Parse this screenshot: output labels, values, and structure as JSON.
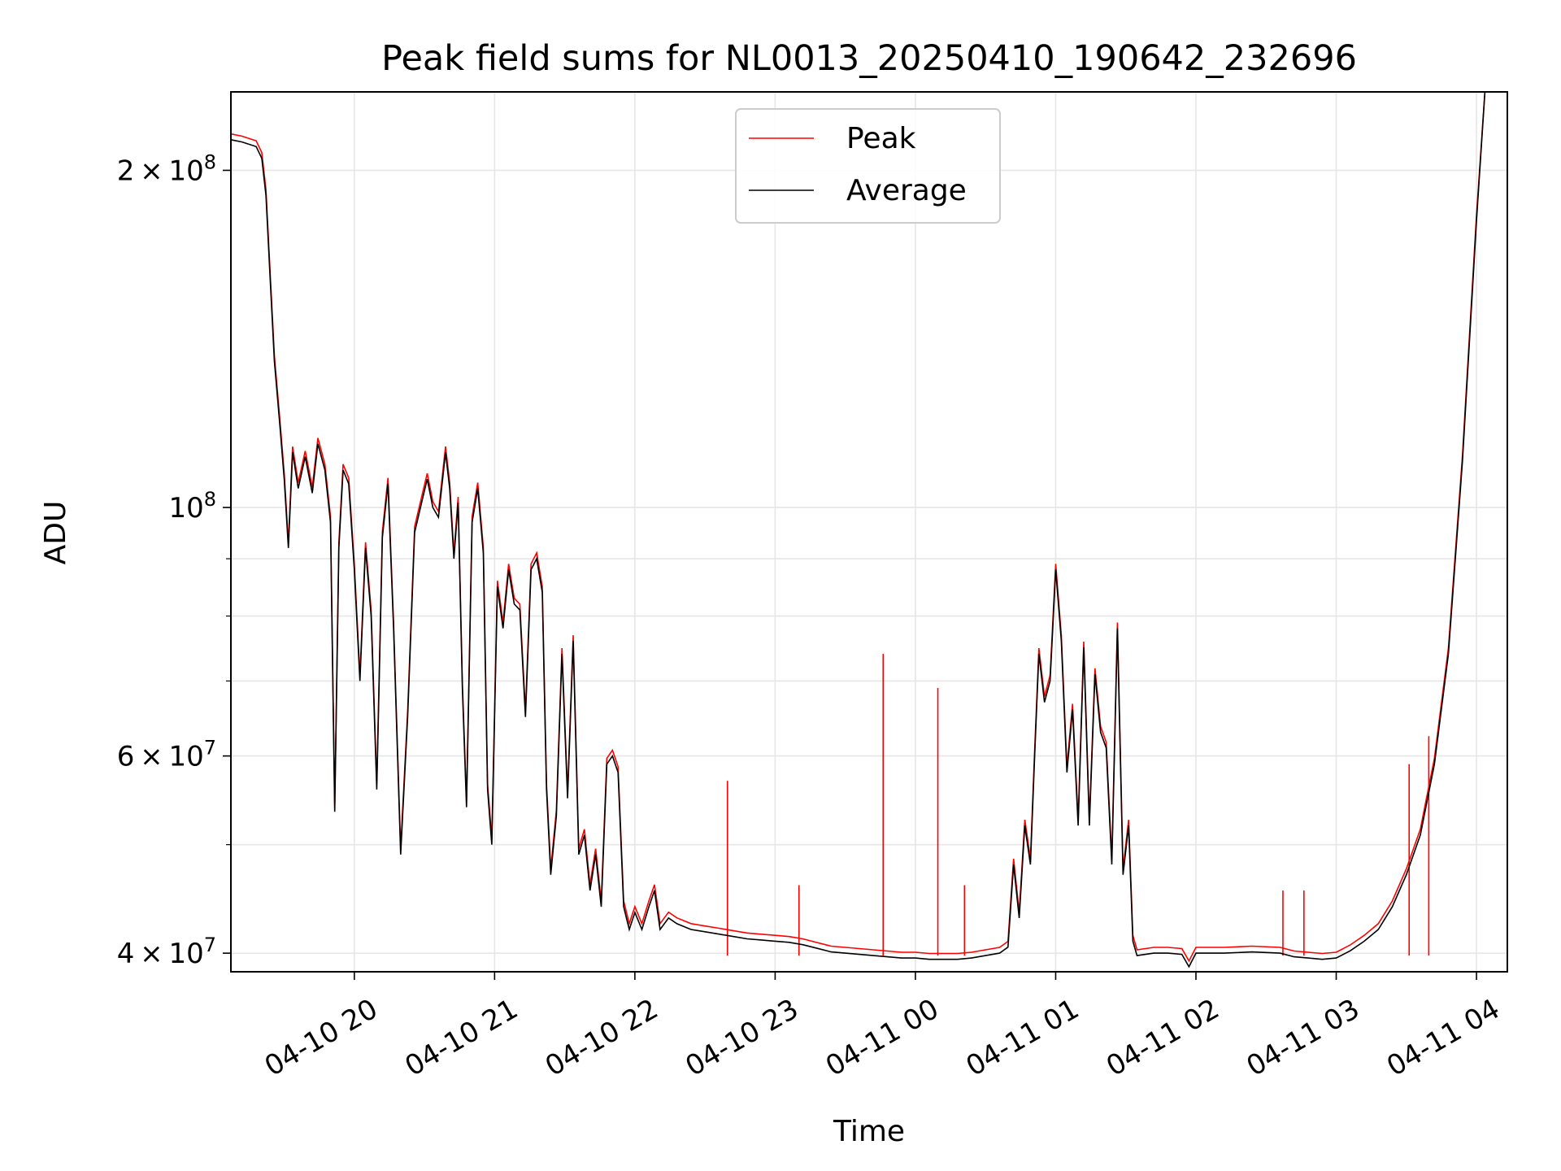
{
  "chart_data": {
    "type": "line",
    "title": "Peak field sums for NL0013_20250410_190642_232696",
    "xlabel": "Time",
    "ylabel": "ADU",
    "x_unit": "time of day (hours, 2025-04-10 19:00 onward; values ≥ 24 are on 2025-04-11)",
    "y_scale": "log",
    "xlim": [
      "2025-04-10 19:07",
      "2025-04-11 04:13"
    ],
    "ylim": [
      38500000,
      235000000
    ],
    "grid": true,
    "legend_position": "upper center",
    "x_ticks": [
      {
        "value": 20,
        "label": "04-10 20"
      },
      {
        "value": 21,
        "label": "04-10 21"
      },
      {
        "value": 22,
        "label": "04-10 22"
      },
      {
        "value": 23,
        "label": "04-10 23"
      },
      {
        "value": 24,
        "label": "04-11 00"
      },
      {
        "value": 25,
        "label": "04-11 01"
      },
      {
        "value": 26,
        "label": "04-11 02"
      },
      {
        "value": 27,
        "label": "04-11 03"
      },
      {
        "value": 28,
        "label": "04-11 04"
      }
    ],
    "y_major_ticks": [
      {
        "value": 40000000,
        "mantissa": "4",
        "exponent": "7"
      },
      {
        "value": 60000000,
        "mantissa": "6",
        "exponent": "7"
      },
      {
        "value": 100000000,
        "mantissa": "",
        "exponent": "8"
      },
      {
        "value": 200000000,
        "mantissa": "2",
        "exponent": "8"
      }
    ],
    "y_minor_ticks": [
      50000000,
      70000000,
      80000000,
      90000000
    ],
    "series": [
      {
        "name": "Peak",
        "color": "#ff0000",
        "spikes": [
          {
            "x": 22.66,
            "y": 57000000
          },
          {
            "x": 23.17,
            "y": 46000000
          },
          {
            "x": 23.77,
            "y": 74000000
          },
          {
            "x": 24.16,
            "y": 69000000
          },
          {
            "x": 24.35,
            "y": 46000000
          },
          {
            "x": 26.62,
            "y": 45500000
          },
          {
            "x": 26.77,
            "y": 45500000
          },
          {
            "x": 27.52,
            "y": 59000000
          },
          {
            "x": 27.66,
            "y": 62500000
          }
        ]
      },
      {
        "name": "Average",
        "color": "#000000",
        "points": [
          [
            19.12,
            213000000
          ],
          [
            19.2,
            212000000
          ],
          [
            19.3,
            210000000
          ],
          [
            19.34,
            205000000
          ],
          [
            19.37,
            190000000
          ],
          [
            19.4,
            160000000
          ],
          [
            19.43,
            135000000
          ],
          [
            19.47,
            118000000
          ],
          [
            19.5,
            106000000
          ],
          [
            19.53,
            92000000
          ],
          [
            19.56,
            112000000
          ],
          [
            19.6,
            104000000
          ],
          [
            19.65,
            111000000
          ],
          [
            19.7,
            103000000
          ],
          [
            19.74,
            114000000
          ],
          [
            19.79,
            108000000
          ],
          [
            19.83,
            97000000
          ],
          [
            19.86,
            53500000
          ],
          [
            19.89,
            92000000
          ],
          [
            19.92,
            108000000
          ],
          [
            19.96,
            105000000
          ],
          [
            20.0,
            88000000
          ],
          [
            20.04,
            70000000
          ],
          [
            20.08,
            92000000
          ],
          [
            20.12,
            80000000
          ],
          [
            20.16,
            56000000
          ],
          [
            20.2,
            94000000
          ],
          [
            20.24,
            105000000
          ],
          [
            20.28,
            78000000
          ],
          [
            20.33,
            49000000
          ],
          [
            20.38,
            65000000
          ],
          [
            20.43,
            95000000
          ],
          [
            20.48,
            101000000
          ],
          [
            20.52,
            106000000
          ],
          [
            20.56,
            100000000
          ],
          [
            20.6,
            98000000
          ],
          [
            20.65,
            112000000
          ],
          [
            20.68,
            104000000
          ],
          [
            20.71,
            90000000
          ],
          [
            20.74,
            101000000
          ],
          [
            20.77,
            69000000
          ],
          [
            20.8,
            54000000
          ],
          [
            20.84,
            97000000
          ],
          [
            20.88,
            104000000
          ],
          [
            20.92,
            91000000
          ],
          [
            20.95,
            56000000
          ],
          [
            20.98,
            50000000
          ],
          [
            21.02,
            85000000
          ],
          [
            21.06,
            78000000
          ],
          [
            21.1,
            88000000
          ],
          [
            21.14,
            82000000
          ],
          [
            21.18,
            81000000
          ],
          [
            21.22,
            65000000
          ],
          [
            21.26,
            88000000
          ],
          [
            21.3,
            90000000
          ],
          [
            21.34,
            84000000
          ],
          [
            21.37,
            56000000
          ],
          [
            21.4,
            47000000
          ],
          [
            21.44,
            53000000
          ],
          [
            21.48,
            74000000
          ],
          [
            21.52,
            55000000
          ],
          [
            21.56,
            76000000
          ],
          [
            21.6,
            49000000
          ],
          [
            21.64,
            51000000
          ],
          [
            21.68,
            45500000
          ],
          [
            21.72,
            49000000
          ],
          [
            21.76,
            44000000
          ],
          [
            21.8,
            59000000
          ],
          [
            21.84,
            60000000
          ],
          [
            21.88,
            58000000
          ],
          [
            21.92,
            44000000
          ],
          [
            21.96,
            42000000
          ],
          [
            22.0,
            43500000
          ],
          [
            22.05,
            42000000
          ],
          [
            22.1,
            44000000
          ],
          [
            22.14,
            45500000
          ],
          [
            22.18,
            42000000
          ],
          [
            22.24,
            43000000
          ],
          [
            22.3,
            42500000
          ],
          [
            22.4,
            42000000
          ],
          [
            22.5,
            41800000
          ],
          [
            22.6,
            41600000
          ],
          [
            22.7,
            41400000
          ],
          [
            22.8,
            41200000
          ],
          [
            22.9,
            41100000
          ],
          [
            23.0,
            41000000
          ],
          [
            23.1,
            40900000
          ],
          [
            23.2,
            40700000
          ],
          [
            23.3,
            40400000
          ],
          [
            23.4,
            40100000
          ],
          [
            23.5,
            40000000
          ],
          [
            23.6,
            39900000
          ],
          [
            23.7,
            39800000
          ],
          [
            23.8,
            39700000
          ],
          [
            23.9,
            39600000
          ],
          [
            24.0,
            39600000
          ],
          [
            24.1,
            39500000
          ],
          [
            24.2,
            39500000
          ],
          [
            24.3,
            39500000
          ],
          [
            24.4,
            39600000
          ],
          [
            24.5,
            39800000
          ],
          [
            24.6,
            40000000
          ],
          [
            24.66,
            40500000
          ],
          [
            24.7,
            48000000
          ],
          [
            24.74,
            43000000
          ],
          [
            24.78,
            52000000
          ],
          [
            24.82,
            48000000
          ],
          [
            24.85,
            60000000
          ],
          [
            24.88,
            74000000
          ],
          [
            24.92,
            67000000
          ],
          [
            24.96,
            70000000
          ],
          [
            25.0,
            88000000
          ],
          [
            25.04,
            76000000
          ],
          [
            25.08,
            58000000
          ],
          [
            25.12,
            66000000
          ],
          [
            25.16,
            52000000
          ],
          [
            25.2,
            75000000
          ],
          [
            25.24,
            52000000
          ],
          [
            25.28,
            71000000
          ],
          [
            25.32,
            63000000
          ],
          [
            25.36,
            61000000
          ],
          [
            25.4,
            48000000
          ],
          [
            25.44,
            78000000
          ],
          [
            25.48,
            47000000
          ],
          [
            25.52,
            52000000
          ],
          [
            25.55,
            41000000
          ],
          [
            25.58,
            39800000
          ],
          [
            25.7,
            40000000
          ],
          [
            25.8,
            40000000
          ],
          [
            25.9,
            39900000
          ],
          [
            25.95,
            38900000
          ],
          [
            26.0,
            40000000
          ],
          [
            26.2,
            40000000
          ],
          [
            26.4,
            40100000
          ],
          [
            26.6,
            40000000
          ],
          [
            26.7,
            39700000
          ],
          [
            26.8,
            39600000
          ],
          [
            26.9,
            39500000
          ],
          [
            27.0,
            39600000
          ],
          [
            27.1,
            40200000
          ],
          [
            27.2,
            41000000
          ],
          [
            27.3,
            42000000
          ],
          [
            27.4,
            44000000
          ],
          [
            27.5,
            47000000
          ],
          [
            27.6,
            51000000
          ],
          [
            27.7,
            59000000
          ],
          [
            27.8,
            74000000
          ],
          [
            27.9,
            110000000
          ],
          [
            28.0,
            180000000
          ],
          [
            28.06,
            235000000
          ]
        ]
      }
    ]
  }
}
